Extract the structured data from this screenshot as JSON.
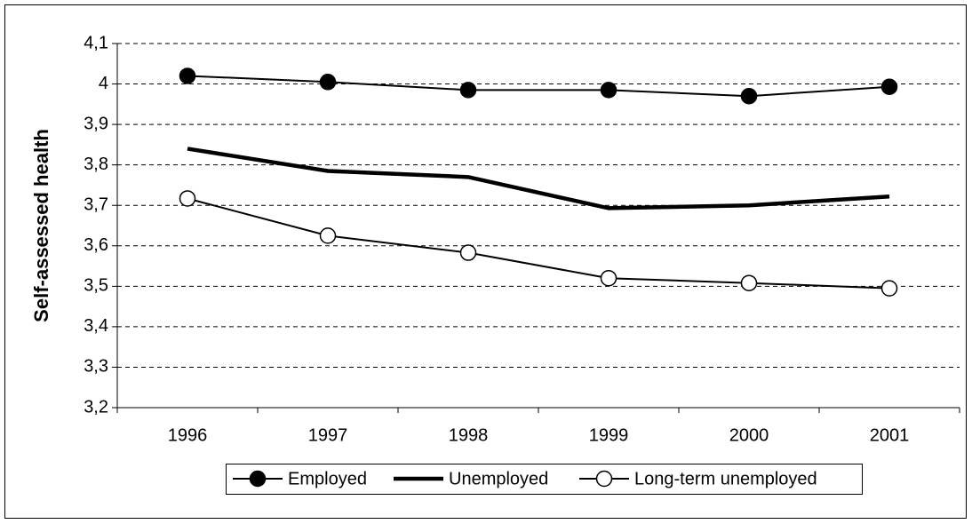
{
  "chart_data": {
    "type": "line",
    "y_label": "Self-assessed health",
    "categories": [
      "1996",
      "1997",
      "1998",
      "1999",
      "2000",
      "2001"
    ],
    "series": [
      {
        "name": "Employed",
        "color": "#000000",
        "marker": "filled",
        "line_width": 2,
        "values": [
          4.02,
          4.005,
          3.985,
          3.985,
          3.97,
          3.993
        ]
      },
      {
        "name": "Unemployed",
        "color": "#000000",
        "marker": "none",
        "line_width": 4.5,
        "values": [
          3.84,
          3.785,
          3.77,
          3.693,
          3.7,
          3.722
        ]
      },
      {
        "name": "Long-term unemployed",
        "color": "#000000",
        "marker": "open",
        "line_width": 2,
        "values": [
          3.717,
          3.625,
          3.583,
          3.52,
          3.508,
          3.495
        ]
      }
    ],
    "ylim": [
      3.2,
      4.1
    ],
    "yticks": [
      {
        "value": 3.2,
        "label": "3,2"
      },
      {
        "value": 3.3,
        "label": "3,3"
      },
      {
        "value": 3.4,
        "label": "3,4"
      },
      {
        "value": 3.5,
        "label": "3,5"
      },
      {
        "value": 3.6,
        "label": "3,6"
      },
      {
        "value": 3.7,
        "label": "3,7"
      },
      {
        "value": 3.8,
        "label": "3,8"
      },
      {
        "value": 3.9,
        "label": "3,9"
      },
      4,
      {
        "value": 4.1,
        "label": "4,1"
      }
    ],
    "grid": true,
    "grid_style": "dashed",
    "legend": "bottom"
  }
}
